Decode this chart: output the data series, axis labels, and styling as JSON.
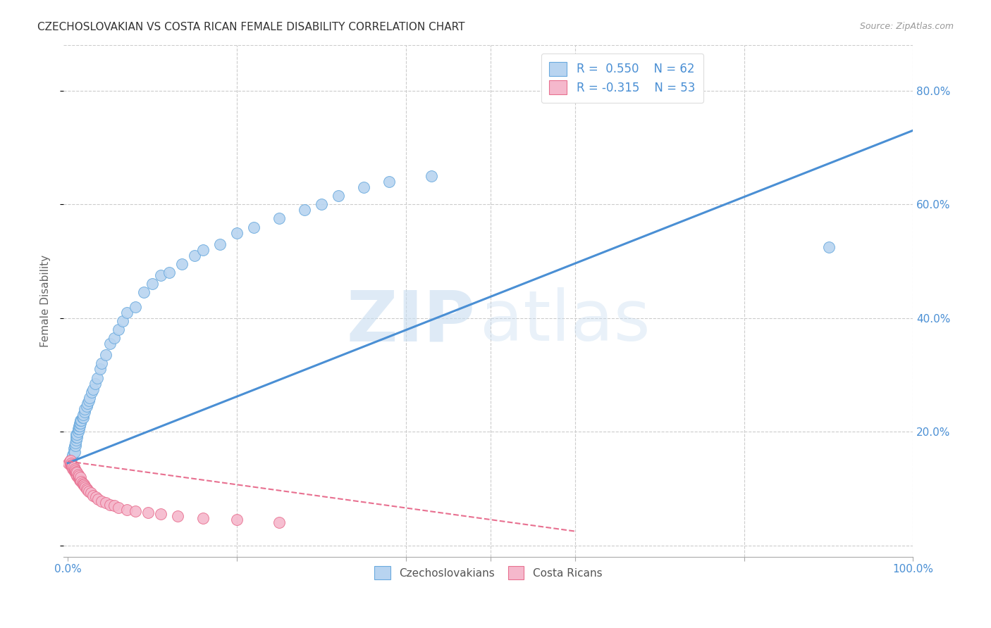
{
  "title": "CZECHOSLOVAKIAN VS COSTA RICAN FEMALE DISABILITY CORRELATION CHART",
  "source": "Source: ZipAtlas.com",
  "ylabel": "Female Disability",
  "xlim": [
    -0.005,
    1.0
  ],
  "ylim": [
    -0.02,
    0.88
  ],
  "blue_R": 0.55,
  "blue_N": 62,
  "pink_R": -0.315,
  "pink_N": 53,
  "blue_color": "#b8d4f0",
  "pink_color": "#f5b8cc",
  "blue_edge_color": "#6aaade",
  "pink_edge_color": "#e87090",
  "blue_line_color": "#4a8fd4",
  "pink_line_color": "#e87090",
  "grid_color": "#cccccc",
  "blue_scatter_x": [
    0.005,
    0.006,
    0.007,
    0.007,
    0.008,
    0.008,
    0.009,
    0.009,
    0.01,
    0.01,
    0.01,
    0.011,
    0.011,
    0.012,
    0.012,
    0.013,
    0.013,
    0.014,
    0.014,
    0.015,
    0.015,
    0.016,
    0.017,
    0.018,
    0.018,
    0.02,
    0.02,
    0.022,
    0.023,
    0.025,
    0.026,
    0.028,
    0.03,
    0.032,
    0.035,
    0.038,
    0.04,
    0.045,
    0.05,
    0.055,
    0.06,
    0.065,
    0.07,
    0.08,
    0.09,
    0.1,
    0.11,
    0.12,
    0.135,
    0.15,
    0.16,
    0.18,
    0.2,
    0.22,
    0.25,
    0.28,
    0.3,
    0.32,
    0.35,
    0.38,
    0.43,
    0.9
  ],
  "blue_scatter_y": [
    0.155,
    0.16,
    0.17,
    0.165,
    0.175,
    0.165,
    0.175,
    0.18,
    0.185,
    0.19,
    0.195,
    0.19,
    0.195,
    0.2,
    0.205,
    0.205,
    0.21,
    0.21,
    0.215,
    0.215,
    0.22,
    0.22,
    0.225,
    0.225,
    0.23,
    0.235,
    0.24,
    0.245,
    0.25,
    0.255,
    0.26,
    0.27,
    0.275,
    0.285,
    0.295,
    0.31,
    0.32,
    0.335,
    0.355,
    0.365,
    0.38,
    0.395,
    0.41,
    0.42,
    0.445,
    0.46,
    0.475,
    0.48,
    0.495,
    0.51,
    0.52,
    0.53,
    0.55,
    0.56,
    0.575,
    0.59,
    0.6,
    0.615,
    0.63,
    0.64,
    0.65,
    0.525
  ],
  "pink_scatter_x": [
    0.001,
    0.002,
    0.003,
    0.003,
    0.004,
    0.004,
    0.005,
    0.005,
    0.006,
    0.006,
    0.007,
    0.007,
    0.008,
    0.008,
    0.009,
    0.009,
    0.01,
    0.01,
    0.011,
    0.011,
    0.012,
    0.012,
    0.013,
    0.013,
    0.014,
    0.015,
    0.015,
    0.016,
    0.017,
    0.018,
    0.019,
    0.02,
    0.021,
    0.022,
    0.023,
    0.025,
    0.027,
    0.03,
    0.033,
    0.036,
    0.04,
    0.045,
    0.05,
    0.055,
    0.06,
    0.07,
    0.08,
    0.095,
    0.11,
    0.13,
    0.16,
    0.2,
    0.25
  ],
  "pink_scatter_y": [
    0.145,
    0.148,
    0.142,
    0.15,
    0.14,
    0.145,
    0.138,
    0.142,
    0.135,
    0.14,
    0.132,
    0.138,
    0.13,
    0.135,
    0.128,
    0.132,
    0.125,
    0.13,
    0.122,
    0.128,
    0.12,
    0.125,
    0.118,
    0.122,
    0.115,
    0.115,
    0.12,
    0.112,
    0.11,
    0.108,
    0.108,
    0.105,
    0.102,
    0.1,
    0.098,
    0.095,
    0.093,
    0.088,
    0.085,
    0.082,
    0.078,
    0.075,
    0.072,
    0.07,
    0.067,
    0.063,
    0.06,
    0.058,
    0.055,
    0.052,
    0.048,
    0.045,
    0.04
  ],
  "blue_trend_x0": 0.0,
  "blue_trend_x1": 1.0,
  "blue_trend_y0": 0.145,
  "blue_trend_y1": 0.73,
  "pink_trend_x0": 0.0,
  "pink_trend_x1": 0.6,
  "pink_trend_y0": 0.148,
  "pink_trend_y1": 0.025,
  "watermark_zip_color": "#c8ddf0",
  "watermark_atlas_color": "#c8ddf0"
}
